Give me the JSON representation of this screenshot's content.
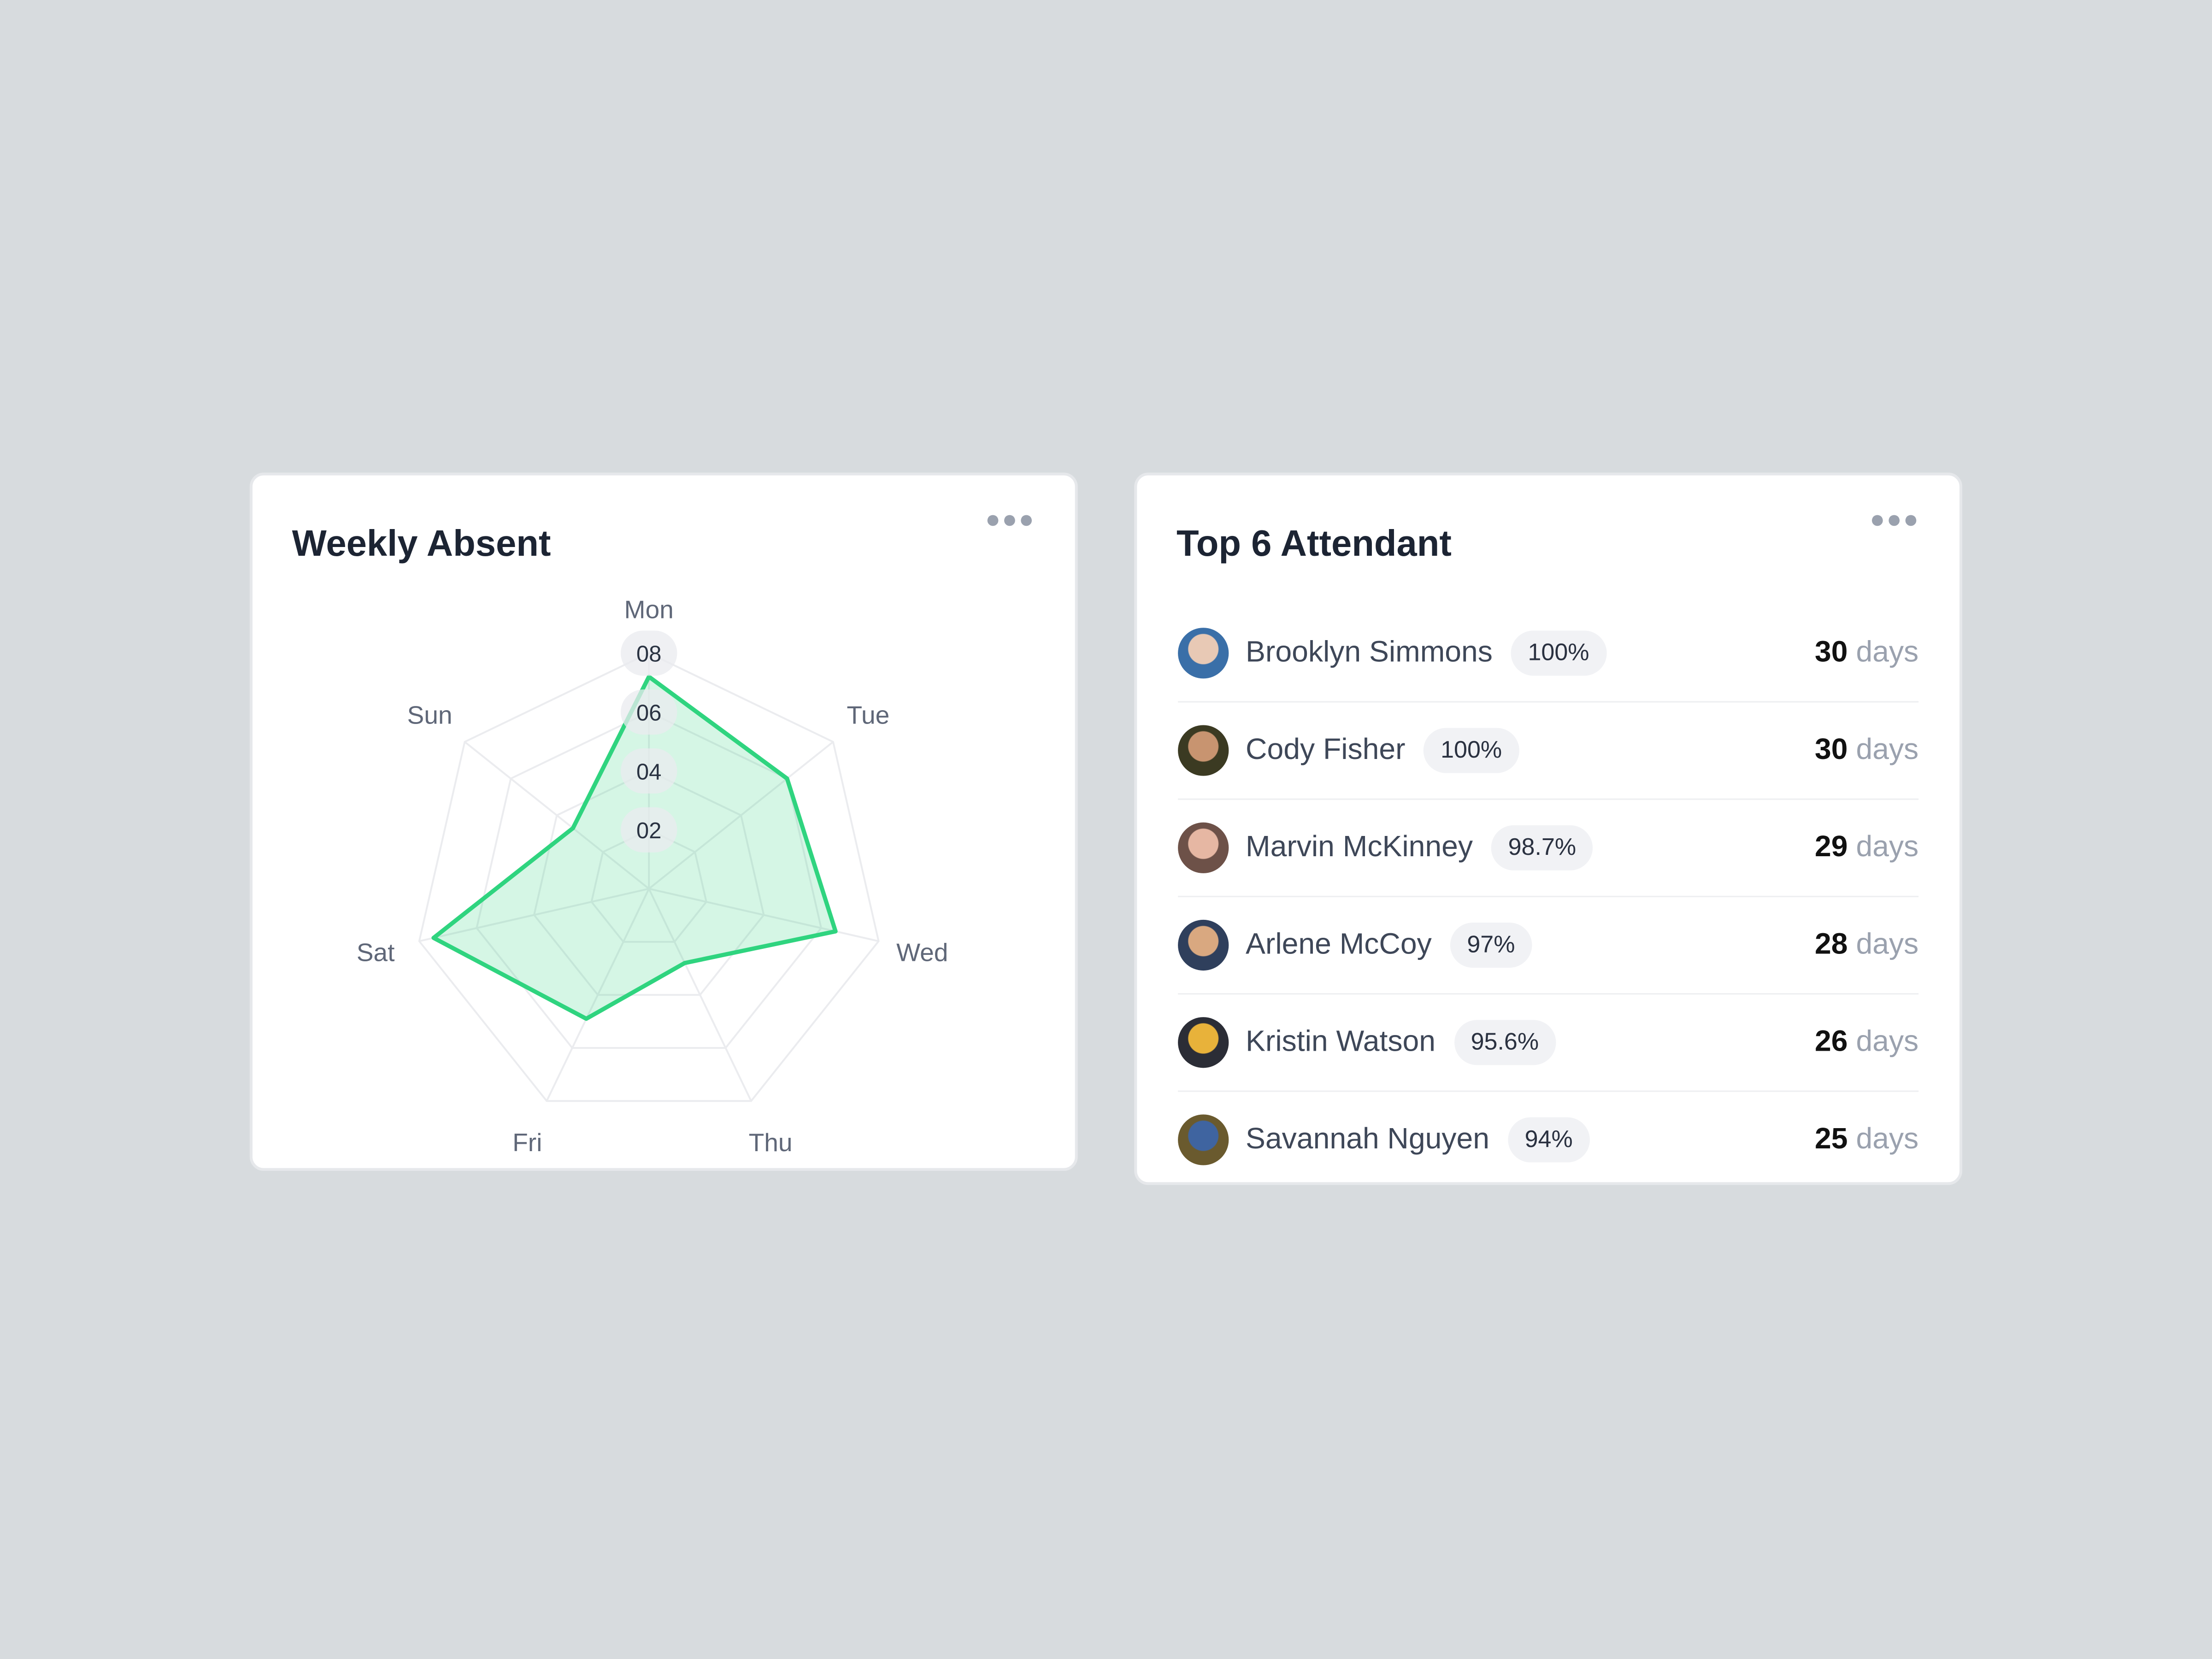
{
  "weekly_absent": {
    "title": "Weekly Absent",
    "menu_icon": "more-horizontal-icon",
    "accent_color": "#2fd47f",
    "chart_data": {
      "type": "radar",
      "title": "Weekly Absent",
      "axes": [
        "Mon",
        "Tue",
        "Wed",
        "Thu",
        "Fri",
        "Sat",
        "Sun"
      ],
      "values": [
        7.2,
        6.0,
        6.5,
        2.8,
        4.9,
        7.5,
        3.3
      ],
      "range": [
        0,
        8
      ],
      "tick_labels": [
        "02",
        "04",
        "06",
        "08"
      ],
      "ticks": [
        2,
        4,
        6,
        8
      ],
      "grid": true
    }
  },
  "top_attendant": {
    "title": "Top 6 Attendant",
    "menu_icon": "more-horizontal-icon",
    "unit": "days",
    "rows": [
      {
        "name": "Brooklyn Simmons",
        "percent": "100%",
        "days": "30",
        "avatar": [
          "#3a6fa8",
          "#e8c9b5"
        ]
      },
      {
        "name": "Cody Fisher",
        "percent": "100%",
        "days": "30",
        "avatar": [
          "#3b3a22",
          "#c89470"
        ]
      },
      {
        "name": "Marvin McKinney",
        "percent": "98.7%",
        "days": "29",
        "avatar": [
          "#6d5148",
          "#e6b7a3"
        ]
      },
      {
        "name": "Arlene McCoy",
        "percent": "97%",
        "days": "28",
        "avatar": [
          "#2f3f5c",
          "#d9a880"
        ]
      },
      {
        "name": "Kristin Watson",
        "percent": "95.6%",
        "days": "26",
        "avatar": [
          "#2b2d36",
          "#e8b23a"
        ]
      },
      {
        "name": "Savannah Nguyen",
        "percent": "94%",
        "days": "25",
        "avatar": [
          "#6a5a2e",
          "#3f64a0"
        ]
      }
    ]
  }
}
